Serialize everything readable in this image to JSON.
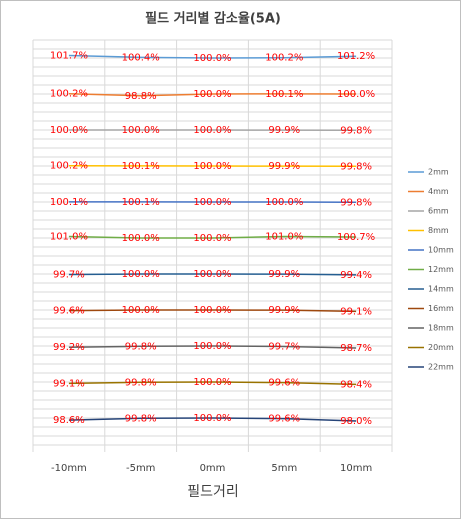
{
  "chart_data": {
    "type": "line",
    "title": "필드 거리별 감소율(5A)",
    "xlabel": "필드거리",
    "categories": [
      "-10mm",
      "-5mm",
      "0mm",
      "5mm",
      "10mm"
    ],
    "legend": "right",
    "label_color": "#ff0000",
    "series": [
      {
        "name": "2mm",
        "color": "#5b9bd5",
        "values": [
          101.7,
          100.4,
          100.0,
          100.2,
          101.2
        ],
        "value_labels": [
          "101.7%",
          "100.4%",
          "100.0%",
          "100.2%",
          "101.2%"
        ]
      },
      {
        "name": "4mm",
        "color": "#ed7d31",
        "values": [
          100.2,
          98.8,
          100.0,
          100.1,
          100.0
        ],
        "value_labels": [
          "100.2%",
          "98.8%",
          "100.0%",
          "100.1%",
          "100.0%"
        ]
      },
      {
        "name": "6mm",
        "color": "#a5a5a5",
        "values": [
          100.0,
          100.0,
          100.0,
          99.9,
          99.8
        ],
        "value_labels": [
          "100.0%",
          "100.0%",
          "100.0%",
          "99.9%",
          "99.8%"
        ]
      },
      {
        "name": "8mm",
        "color": "#ffc000",
        "values": [
          100.2,
          100.1,
          100.0,
          99.9,
          99.8
        ],
        "value_labels": [
          "100.2%",
          "100.1%",
          "100.0%",
          "99.9%",
          "99.8%"
        ]
      },
      {
        "name": "10mm",
        "color": "#4472c4",
        "values": [
          100.1,
          100.1,
          100.0,
          100.0,
          99.8
        ],
        "value_labels": [
          "100.1%",
          "100.1%",
          "100.0%",
          "100.0%",
          "99.8%"
        ]
      },
      {
        "name": "12mm",
        "color": "#70ad47",
        "values": [
          101.0,
          100.0,
          100.0,
          101.0,
          100.7
        ],
        "value_labels": [
          "101.0%",
          "100.0%",
          "100.0%",
          "101.0%",
          "100.7%"
        ]
      },
      {
        "name": "14mm",
        "color": "#255e91",
        "values": [
          99.7,
          100.0,
          100.0,
          99.9,
          99.4
        ],
        "value_labels": [
          "99.7%",
          "100.0%",
          "100.0%",
          "99.9%",
          "99.4%"
        ]
      },
      {
        "name": "16mm",
        "color": "#9e480e",
        "values": [
          99.6,
          100.0,
          100.0,
          99.9,
          99.1
        ],
        "value_labels": [
          "99.6%",
          "100.0%",
          "100.0%",
          "99.9%",
          "99.1%"
        ]
      },
      {
        "name": "18mm",
        "color": "#636363",
        "values": [
          99.2,
          99.8,
          100.0,
          99.7,
          98.7
        ],
        "value_labels": [
          "99.2%",
          "99.8%",
          "100.0%",
          "99.7%",
          "98.7%"
        ]
      },
      {
        "name": "20mm",
        "color": "#997300",
        "values": [
          99.1,
          99.8,
          100.0,
          99.6,
          98.4
        ],
        "value_labels": [
          "99.1%",
          "99.8%",
          "100.0%",
          "99.6%",
          "98.4%"
        ]
      },
      {
        "name": "22mm",
        "color": "#264478",
        "values": [
          98.6,
          99.8,
          100.0,
          99.6,
          98.0
        ],
        "value_labels": [
          "98.6%",
          "99.8%",
          "100.0%",
          "99.6%",
          "98.0%"
        ]
      }
    ]
  }
}
